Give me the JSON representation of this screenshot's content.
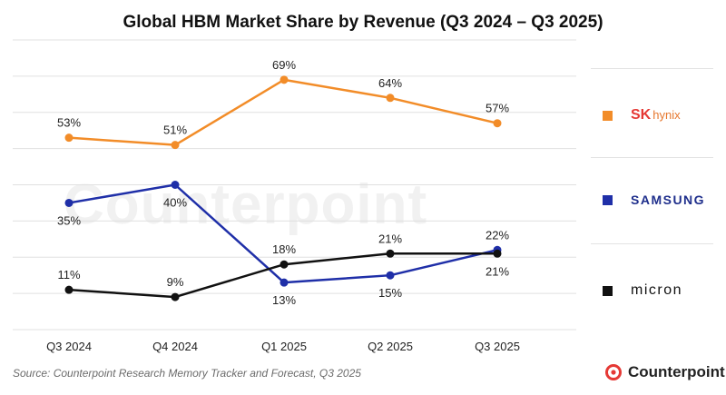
{
  "chart_data": {
    "type": "line",
    "title": "Global HBM Market Share by Revenue (Q3 2024 – Q3 2025)",
    "categories": [
      "Q3 2024",
      "Q4 2024",
      "Q1 2025",
      "Q2 2025",
      "Q3 2025"
    ],
    "ylim": [
      0,
      80
    ],
    "grid": true,
    "legend": "right",
    "series": [
      {
        "name": "SK hynix",
        "color": "#f28c28",
        "values": [
          53,
          51,
          69,
          64,
          57
        ],
        "labels": [
          "53%",
          "51%",
          "69%",
          "64%",
          "57%"
        ]
      },
      {
        "name": "SAMSUNG",
        "color": "#1f2fa8",
        "values": [
          35,
          40,
          13,
          15,
          22
        ],
        "labels": [
          "35%",
          "40%",
          "13%",
          "15%",
          "22%"
        ]
      },
      {
        "name": "micron",
        "color": "#111111",
        "values": [
          11,
          9,
          18,
          21,
          21
        ],
        "labels": [
          "11%",
          "9%",
          "18%",
          "21%",
          "21%"
        ]
      }
    ]
  },
  "legend": {
    "sk": "SK",
    "hynix": "hynix",
    "samsung": "SAMSUNG",
    "micron": "micron"
  },
  "watermark": "Counterpoint",
  "source": "Source: Counterpoint Research Memory Tracker and Forecast, Q3 2025",
  "brand": "Counterpoint"
}
